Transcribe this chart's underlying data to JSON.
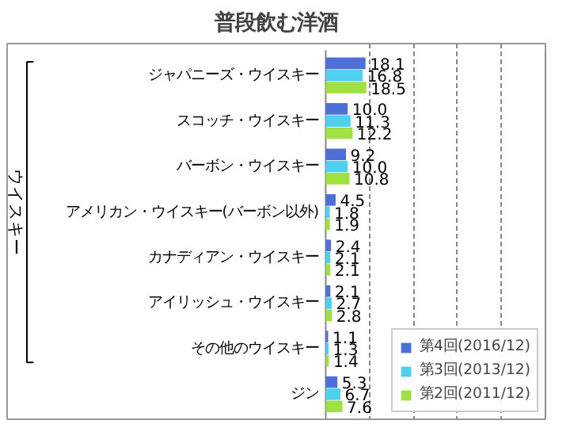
{
  "chart_data": {
    "type": "bar",
    "orientation": "horizontal",
    "title": "普段飲む洋酒",
    "categories": [
      "ジャパニーズ・ウイスキー",
      "スコッチ・ウイスキー",
      "バーボン・ウイスキー",
      "アメリカン・ウイスキー(バーボン以外)",
      "カナディアン・ウイスキー",
      "アイリッシュ・ウイスキー",
      "その他のウイスキー",
      "ジン"
    ],
    "series": [
      {
        "name": "第4回(2016/12)",
        "color": "#4f6fd8",
        "values": [
          18.1,
          10.0,
          9.2,
          4.5,
          2.4,
          2.1,
          1.1,
          5.3
        ],
        "value_labels": [
          "18.1",
          "10.0",
          "9.2",
          "4.5",
          "2.4",
          "2.1",
          "1.1",
          "5.3"
        ]
      },
      {
        "name": "第3回(2013/12)",
        "color": "#4fd0f0",
        "values": [
          16.8,
          11.3,
          10.0,
          1.8,
          2.1,
          2.7,
          1.3,
          6.7
        ],
        "value_labels": [
          "16.8",
          "11.3",
          "10.0",
          "1.8",
          "2.1",
          "2.7",
          "1.3",
          "6.7"
        ]
      },
      {
        "name": "第2回(2011/12)",
        "color": "#a0e040",
        "values": [
          18.5,
          12.2,
          10.8,
          1.9,
          2.1,
          2.8,
          1.4,
          7.6
        ],
        "value_labels": [
          "18.5",
          "12.2",
          "10.8",
          "1.9",
          "2.1",
          "2.8",
          "1.4",
          "7.6"
        ]
      }
    ],
    "xlim": [
      0,
      100
    ],
    "xticks": [
      {
        "value": 20,
        "label": null
      },
      {
        "value": 40,
        "label": null
      },
      {
        "value": 60,
        "label": null
      },
      {
        "value": 80,
        "label": null
      }
    ],
    "tick_labels": "y",
    "grid": "x",
    "legend": "bottom right",
    "annotations": [
      "ウイスキー"
    ]
  }
}
